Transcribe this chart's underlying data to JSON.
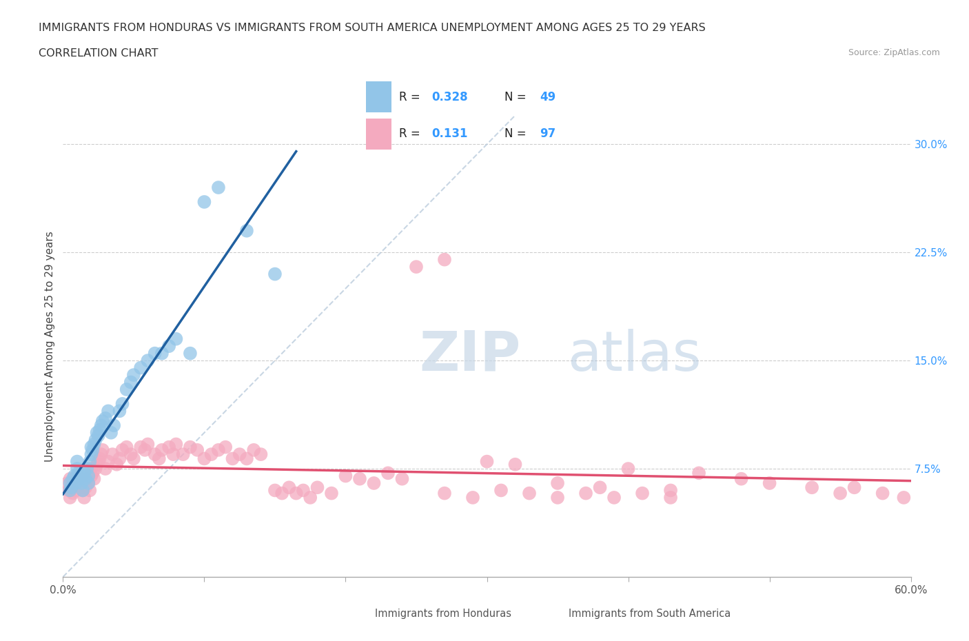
{
  "title_line1": "IMMIGRANTS FROM HONDURAS VS IMMIGRANTS FROM SOUTH AMERICA UNEMPLOYMENT AMONG AGES 25 TO 29 YEARS",
  "title_line2": "CORRELATION CHART",
  "source_text": "Source: ZipAtlas.com",
  "ylabel": "Unemployment Among Ages 25 to 29 years",
  "xlim": [
    0.0,
    0.6
  ],
  "ylim": [
    0.0,
    0.32
  ],
  "xticks": [
    0.0,
    0.1,
    0.2,
    0.3,
    0.4,
    0.5,
    0.6
  ],
  "yticks_right": [
    0.075,
    0.15,
    0.225,
    0.3
  ],
  "yticklabels_right": [
    "7.5%",
    "15.0%",
    "22.5%",
    "30.0%"
  ],
  "R_blue": 0.328,
  "N_blue": 49,
  "R_pink": 0.131,
  "N_pink": 97,
  "blue_color": "#92C5E8",
  "pink_color": "#F4AABF",
  "trend_blue_color": "#2060A0",
  "trend_pink_color": "#E05070",
  "diag_color": "#BBCCDD",
  "legend_label_blue": "Immigrants from Honduras",
  "legend_label_pink": "Immigrants from South America",
  "watermark_zip": "ZIP",
  "watermark_atlas": "atlas",
  "blue_x": [
    0.005,
    0.005,
    0.006,
    0.007,
    0.008,
    0.009,
    0.01,
    0.01,
    0.011,
    0.011,
    0.012,
    0.013,
    0.014,
    0.015,
    0.016,
    0.017,
    0.018,
    0.018,
    0.019,
    0.02,
    0.02,
    0.021,
    0.022,
    0.023,
    0.024,
    0.025,
    0.026,
    0.027,
    0.028,
    0.03,
    0.032,
    0.034,
    0.036,
    0.04,
    0.042,
    0.045,
    0.048,
    0.05,
    0.055,
    0.06,
    0.065,
    0.07,
    0.075,
    0.08,
    0.09,
    0.1,
    0.11,
    0.13,
    0.15
  ],
  "blue_y": [
    0.06,
    0.065,
    0.062,
    0.068,
    0.07,
    0.065,
    0.075,
    0.08,
    0.072,
    0.068,
    0.07,
    0.065,
    0.06,
    0.072,
    0.068,
    0.075,
    0.07,
    0.065,
    0.08,
    0.085,
    0.09,
    0.088,
    0.092,
    0.095,
    0.1,
    0.098,
    0.102,
    0.105,
    0.108,
    0.11,
    0.115,
    0.1,
    0.105,
    0.115,
    0.12,
    0.13,
    0.135,
    0.14,
    0.145,
    0.15,
    0.155,
    0.155,
    0.16,
    0.165,
    0.155,
    0.26,
    0.27,
    0.24,
    0.21
  ],
  "pink_x": [
    0.003,
    0.004,
    0.005,
    0.005,
    0.006,
    0.007,
    0.008,
    0.009,
    0.01,
    0.01,
    0.011,
    0.012,
    0.013,
    0.014,
    0.015,
    0.016,
    0.017,
    0.018,
    0.019,
    0.02,
    0.02,
    0.021,
    0.022,
    0.023,
    0.024,
    0.025,
    0.026,
    0.027,
    0.028,
    0.03,
    0.032,
    0.035,
    0.038,
    0.04,
    0.042,
    0.045,
    0.048,
    0.05,
    0.055,
    0.058,
    0.06,
    0.065,
    0.068,
    0.07,
    0.075,
    0.078,
    0.08,
    0.085,
    0.09,
    0.095,
    0.1,
    0.105,
    0.11,
    0.115,
    0.12,
    0.125,
    0.13,
    0.135,
    0.14,
    0.15,
    0.155,
    0.16,
    0.165,
    0.17,
    0.175,
    0.18,
    0.19,
    0.2,
    0.21,
    0.22,
    0.23,
    0.24,
    0.25,
    0.27,
    0.3,
    0.32,
    0.35,
    0.38,
    0.4,
    0.43,
    0.45,
    0.48,
    0.5,
    0.53,
    0.55,
    0.27,
    0.29,
    0.31,
    0.33,
    0.35,
    0.37,
    0.39,
    0.41,
    0.43,
    0.56,
    0.58,
    0.595
  ],
  "pink_y": [
    0.065,
    0.06,
    0.068,
    0.055,
    0.062,
    0.058,
    0.065,
    0.06,
    0.07,
    0.065,
    0.062,
    0.068,
    0.065,
    0.06,
    0.055,
    0.062,
    0.068,
    0.065,
    0.06,
    0.07,
    0.075,
    0.072,
    0.068,
    0.075,
    0.078,
    0.08,
    0.082,
    0.085,
    0.088,
    0.075,
    0.08,
    0.085,
    0.078,
    0.082,
    0.088,
    0.09,
    0.085,
    0.082,
    0.09,
    0.088,
    0.092,
    0.085,
    0.082,
    0.088,
    0.09,
    0.085,
    0.092,
    0.085,
    0.09,
    0.088,
    0.082,
    0.085,
    0.088,
    0.09,
    0.082,
    0.085,
    0.082,
    0.088,
    0.085,
    0.06,
    0.058,
    0.062,
    0.058,
    0.06,
    0.055,
    0.062,
    0.058,
    0.07,
    0.068,
    0.065,
    0.072,
    0.068,
    0.215,
    0.22,
    0.08,
    0.078,
    0.065,
    0.062,
    0.075,
    0.06,
    0.072,
    0.068,
    0.065,
    0.062,
    0.058,
    0.058,
    0.055,
    0.06,
    0.058,
    0.055,
    0.058,
    0.055,
    0.058,
    0.055,
    0.062,
    0.058,
    0.055
  ]
}
